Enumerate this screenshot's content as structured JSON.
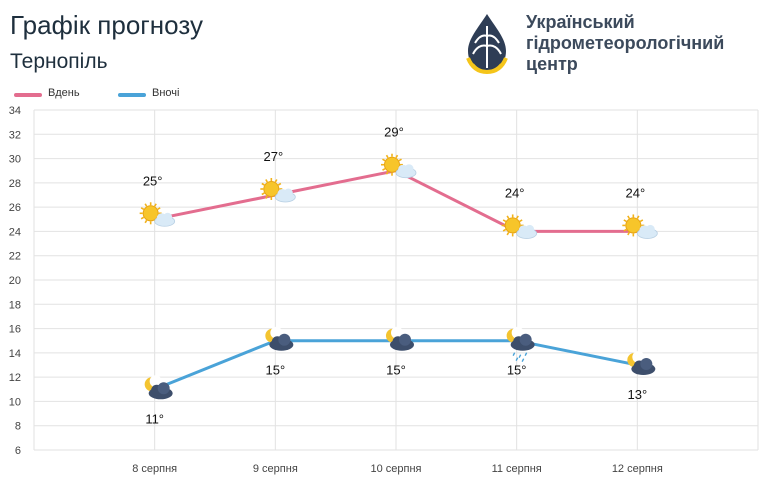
{
  "header": {
    "title": "Графік прогнозу",
    "city": "Тернопіль"
  },
  "logo": {
    "line1": "Український",
    "line2": "гідрометеорологічний",
    "line3": "центр"
  },
  "colors": {
    "day": "#e36d8f",
    "night": "#4aa3d8",
    "grid": "#e2e2e2",
    "axis_text": "#444444",
    "logo_navy": "#2e3d55",
    "logo_yellow": "#f5c51a"
  },
  "chart_data": {
    "type": "line",
    "categories": [
      "8 серпня",
      "9 серпня",
      "10 серпня",
      "11 серпня",
      "12 серпня"
    ],
    "series": [
      {
        "name": "Вдень",
        "values": [
          25,
          27,
          29,
          24,
          24
        ],
        "labels": [
          "25°",
          "27°",
          "29°",
          "24°",
          "24°"
        ],
        "icons": [
          "sun-cloud-icon",
          "sun-cloud-icon",
          "sun-cloud-icon",
          "sun-cloud-icon",
          "sun-cloud-icon"
        ]
      },
      {
        "name": "Вночі",
        "values": [
          11,
          15,
          15,
          15,
          13
        ],
        "labels": [
          "11°",
          "15°",
          "15°",
          "15°",
          "13°"
        ],
        "icons": [
          "moon-cloud-icon",
          "moon-cloud-icon",
          "moon-cloud-icon",
          "moon-cloud-rain-icon",
          "moon-cloud-icon"
        ]
      }
    ],
    "yticks": [
      6,
      8,
      10,
      12,
      14,
      16,
      18,
      20,
      22,
      24,
      26,
      28,
      30,
      32,
      34
    ],
    "ylim": [
      6,
      34
    ],
    "grid": true,
    "legend": "top-left"
  }
}
